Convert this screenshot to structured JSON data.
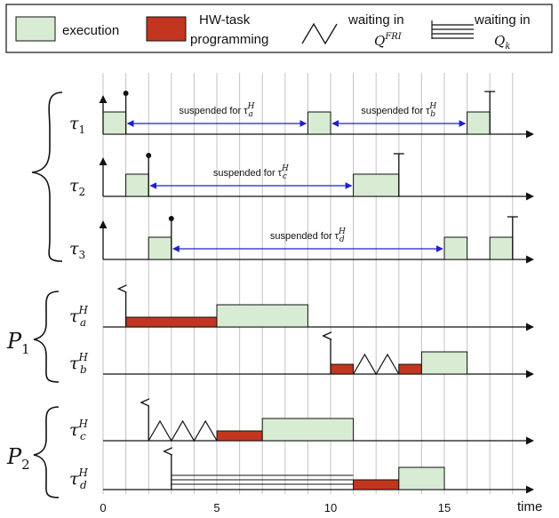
{
  "legend": {
    "execution": "execution",
    "programming_line1": "HW-task",
    "programming_line2": "programming",
    "waiting_fri_line1": "waiting in",
    "waiting_fri_math": "Q",
    "waiting_fri_sup": "FRI",
    "waiting_k_line1": "waiting in",
    "waiting_k_math": "Q",
    "waiting_k_sub": "k"
  },
  "colors": {
    "execution": "#d7ecd3",
    "programming": "#c2361f",
    "grid": "#c8c8c8",
    "suspension_arrow": "#1f1fd0"
  },
  "time_axis": {
    "label": "time",
    "tick_labels": [
      "0",
      "5",
      "10",
      "15"
    ],
    "ticks_at": [
      0,
      5,
      10,
      15
    ],
    "range": [
      0,
      19
    ]
  },
  "groups": {
    "cpu_brace": "",
    "p1_label": "P",
    "p1_sub": "1",
    "p2_label": "P",
    "p2_sub": "2"
  },
  "rows": [
    {
      "id": "tau1",
      "label": "τ",
      "sub": "1",
      "sup": "",
      "exec": [
        [
          0,
          1
        ],
        [
          9,
          10
        ],
        [
          16,
          17
        ]
      ],
      "prog": [],
      "zigzag": [],
      "queue": null,
      "release_arrow": 0,
      "release_pin": 1,
      "deadline": 17,
      "suspensions": [
        {
          "from": 1,
          "to": 9,
          "text": "suspended for τ",
          "sub": "a",
          "sup": "H"
        },
        {
          "from": 10,
          "to": 16,
          "text": "suspended for τ",
          "sub": "b",
          "sup": "H"
        }
      ]
    },
    {
      "id": "tau2",
      "label": "τ",
      "sub": "2",
      "sup": "",
      "exec": [
        [
          1,
          2
        ],
        [
          11,
          13
        ]
      ],
      "prog": [],
      "zigzag": [],
      "queue": null,
      "release_arrow": 0,
      "release_pin": 2,
      "deadline": 13,
      "suspensions": [
        {
          "from": 2,
          "to": 11,
          "text": "suspended for τ",
          "sub": "c",
          "sup": "H"
        }
      ]
    },
    {
      "id": "tau3",
      "label": "τ",
      "sub": "3",
      "sup": "",
      "exec": [
        [
          2,
          3
        ],
        [
          15,
          16
        ],
        [
          17,
          18
        ]
      ],
      "prog": [],
      "zigzag": [],
      "queue": null,
      "release_arrow": 0,
      "release_pin": 3,
      "deadline": 18,
      "suspensions": [
        {
          "from": 3,
          "to": 15,
          "text": "suspended for τ",
          "sub": "d",
          "sup": "H"
        }
      ]
    },
    {
      "id": "tauaH",
      "label": "τ",
      "sub": "a",
      "sup": "H",
      "exec": [
        [
          5,
          9
        ]
      ],
      "prog": [
        [
          1,
          5
        ]
      ],
      "zigzag": [],
      "queue": null,
      "release_arrow": 1,
      "release_pin": null,
      "deadline": null,
      "suspensions": []
    },
    {
      "id": "taubH",
      "label": "τ",
      "sub": "b",
      "sup": "H",
      "exec": [
        [
          14,
          16
        ]
      ],
      "prog": [
        [
          10,
          11
        ],
        [
          13,
          14
        ]
      ],
      "zigzag": [
        [
          11,
          13
        ]
      ],
      "queue": null,
      "release_arrow": 10,
      "release_pin": null,
      "deadline": null,
      "suspensions": []
    },
    {
      "id": "taucH",
      "label": "τ",
      "sub": "c",
      "sup": "H",
      "exec": [
        [
          7,
          11
        ]
      ],
      "prog": [
        [
          5,
          7
        ]
      ],
      "zigzag": [
        [
          2,
          5
        ]
      ],
      "queue": null,
      "release_arrow": 2,
      "release_pin": null,
      "deadline": null,
      "suspensions": []
    },
    {
      "id": "taudH",
      "label": "τ",
      "sub": "d",
      "sup": "H",
      "exec": [
        [
          13,
          15
        ]
      ],
      "prog": [
        [
          11,
          13
        ]
      ],
      "zigzag": [],
      "queue": [
        3,
        11
      ],
      "release_arrow": 3,
      "release_pin": null,
      "deadline": null,
      "suspensions": []
    }
  ]
}
